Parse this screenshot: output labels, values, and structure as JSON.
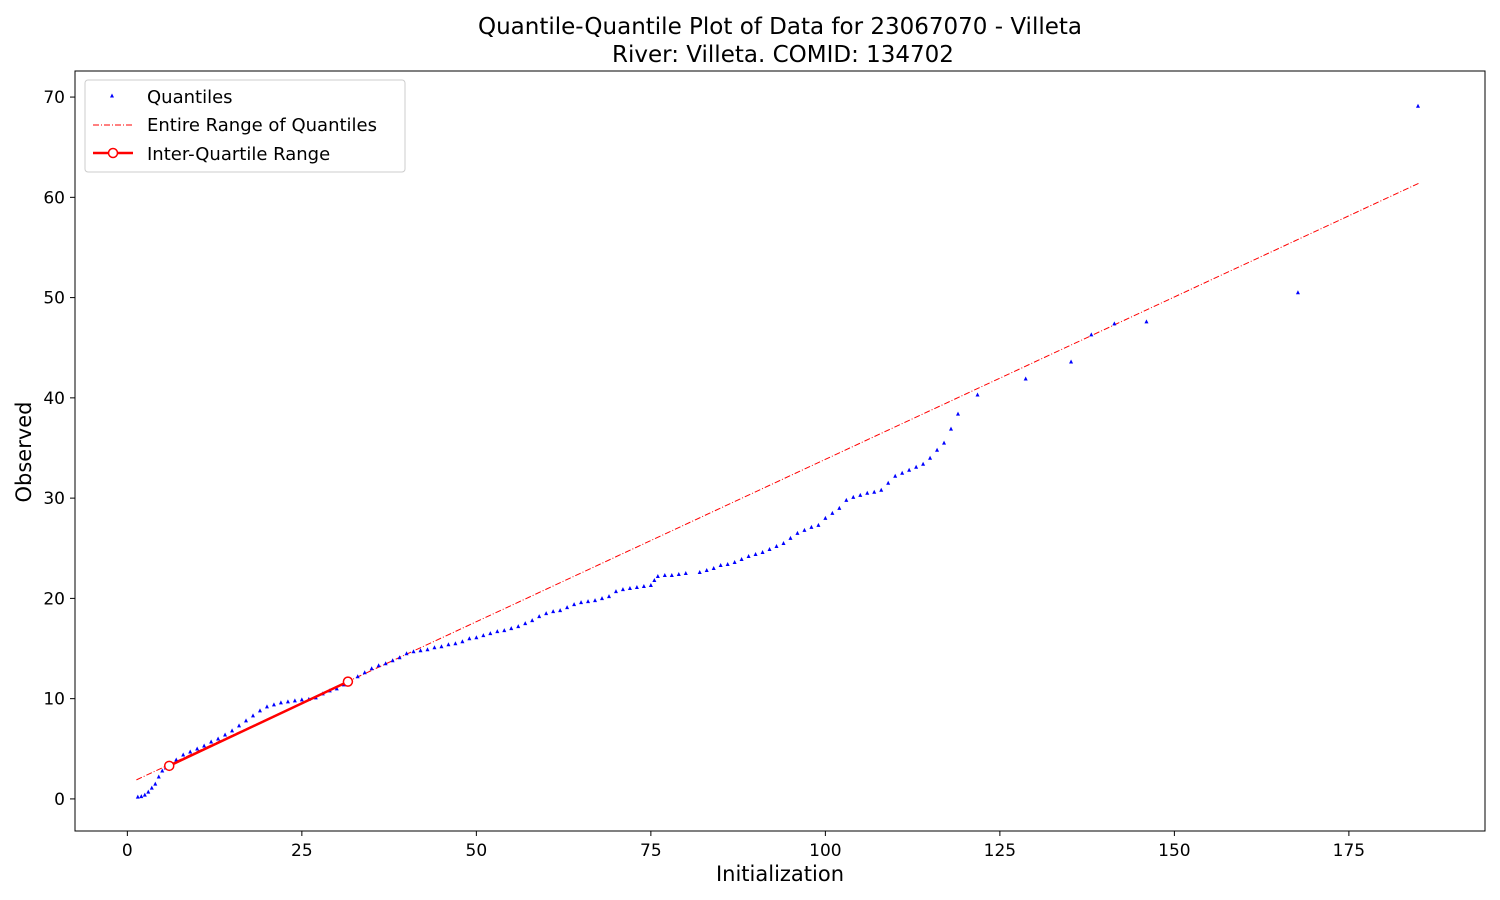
{
  "chart_data": {
    "type": "scatter",
    "title": "Quantile-Quantile Plot of Data for 23067070 - Villeta",
    "subtitle": "River: Villeta. COMID: 134702",
    "xlabel": "Initialization",
    "ylabel": "Observed",
    "xlim": [
      -7.5,
      194.5
    ],
    "ylim": [
      -3.2,
      72.6
    ],
    "xticks": [
      0,
      25,
      50,
      75,
      100,
      125,
      150,
      175
    ],
    "yticks": [
      0,
      10,
      20,
      30,
      40,
      50,
      60,
      70
    ],
    "grid": false,
    "legend_position": "upper-left",
    "colors": {
      "quantiles": "#0000ff",
      "entire_range": "#ff0000",
      "iqr": "#ff0000"
    },
    "series": [
      {
        "name": "Quantiles",
        "style": "triangle-markers",
        "points": [
          [
            1.5,
            0.2
          ],
          [
            2.0,
            0.25
          ],
          [
            2.5,
            0.4
          ],
          [
            3.0,
            0.7
          ],
          [
            3.5,
            1.1
          ],
          [
            4.0,
            1.5
          ],
          [
            4.5,
            2.2
          ],
          [
            5.0,
            2.8
          ],
          [
            5.5,
            3.1
          ],
          [
            6.0,
            3.4
          ],
          [
            7.0,
            3.9
          ],
          [
            8.0,
            4.4
          ],
          [
            9.0,
            4.7
          ],
          [
            10.0,
            5.0
          ],
          [
            11.0,
            5.3
          ],
          [
            12.0,
            5.7
          ],
          [
            13.0,
            6.0
          ],
          [
            14.0,
            6.4
          ],
          [
            15.0,
            6.8
          ],
          [
            16.0,
            7.3
          ],
          [
            17.0,
            7.8
          ],
          [
            18.0,
            8.3
          ],
          [
            19.0,
            8.8
          ],
          [
            20.0,
            9.2
          ],
          [
            21.0,
            9.4
          ],
          [
            22.0,
            9.6
          ],
          [
            23.0,
            9.7
          ],
          [
            24.0,
            9.8
          ],
          [
            25.0,
            9.9
          ],
          [
            26.0,
            9.95
          ],
          [
            27.0,
            10.1
          ],
          [
            28.0,
            10.5
          ],
          [
            29.0,
            10.8
          ],
          [
            30.0,
            11.0
          ],
          [
            31.0,
            11.4
          ],
          [
            32.0,
            11.8
          ],
          [
            33.0,
            12.2
          ],
          [
            34.0,
            12.6
          ],
          [
            35.0,
            13.0
          ],
          [
            36.0,
            13.3
          ],
          [
            37.0,
            13.5
          ],
          [
            38.0,
            13.8
          ],
          [
            39.0,
            14.1
          ],
          [
            40.0,
            14.5
          ],
          [
            41.0,
            14.7
          ],
          [
            42.0,
            14.8
          ],
          [
            43.0,
            14.9
          ],
          [
            44.0,
            15.1
          ],
          [
            45.0,
            15.2
          ],
          [
            46.0,
            15.4
          ],
          [
            47.0,
            15.5
          ],
          [
            48.0,
            15.7
          ],
          [
            49.0,
            16.0
          ],
          [
            50.0,
            16.1
          ],
          [
            51.0,
            16.3
          ],
          [
            52.0,
            16.5
          ],
          [
            53.0,
            16.7
          ],
          [
            54.0,
            16.8
          ],
          [
            55.0,
            17.0
          ],
          [
            56.0,
            17.2
          ],
          [
            57.0,
            17.5
          ],
          [
            58.0,
            17.8
          ],
          [
            59.0,
            18.2
          ],
          [
            60.0,
            18.5
          ],
          [
            61.0,
            18.7
          ],
          [
            62.0,
            18.8
          ],
          [
            63.0,
            19.1
          ],
          [
            64.0,
            19.4
          ],
          [
            65.0,
            19.6
          ],
          [
            66.0,
            19.7
          ],
          [
            67.0,
            19.8
          ],
          [
            68.0,
            20.0
          ],
          [
            69.0,
            20.2
          ],
          [
            70.0,
            20.7
          ],
          [
            71.0,
            20.9
          ],
          [
            72.0,
            21.0
          ],
          [
            73.0,
            21.1
          ],
          [
            74.0,
            21.2
          ],
          [
            75.0,
            21.3
          ],
          [
            75.5,
            21.8
          ],
          [
            76.0,
            22.2
          ],
          [
            77.0,
            22.3
          ],
          [
            78.0,
            22.3
          ],
          [
            79.0,
            22.4
          ],
          [
            80.0,
            22.5
          ],
          [
            82.0,
            22.6
          ],
          [
            83.0,
            22.8
          ],
          [
            84.0,
            23.0
          ],
          [
            85.0,
            23.3
          ],
          [
            86.0,
            23.4
          ],
          [
            87.0,
            23.6
          ],
          [
            88.0,
            23.9
          ],
          [
            89.0,
            24.2
          ],
          [
            90.0,
            24.4
          ],
          [
            91.0,
            24.6
          ],
          [
            92.0,
            24.9
          ],
          [
            93.0,
            25.2
          ],
          [
            94.0,
            25.5
          ],
          [
            95.0,
            26.0
          ],
          [
            96.0,
            26.5
          ],
          [
            97.0,
            26.8
          ],
          [
            98.0,
            27.1
          ],
          [
            99.0,
            27.3
          ],
          [
            100.0,
            28.0
          ],
          [
            101.0,
            28.5
          ],
          [
            102.0,
            29.0
          ],
          [
            103.0,
            29.8
          ],
          [
            104.0,
            30.1
          ],
          [
            105.0,
            30.3
          ],
          [
            106.0,
            30.5
          ],
          [
            107.0,
            30.6
          ],
          [
            108.0,
            30.8
          ],
          [
            109.0,
            31.5
          ],
          [
            110.0,
            32.2
          ],
          [
            111.0,
            32.5
          ],
          [
            112.0,
            32.8
          ],
          [
            113.0,
            33.1
          ],
          [
            114.0,
            33.4
          ],
          [
            115.0,
            34.0
          ],
          [
            116.0,
            34.8
          ],
          [
            117.0,
            35.5
          ],
          [
            118.0,
            36.9
          ],
          [
            119.0,
            38.4
          ],
          [
            121.8,
            40.3
          ],
          [
            128.7,
            41.9
          ],
          [
            135.2,
            43.6
          ],
          [
            138.1,
            46.3
          ],
          [
            141.4,
            47.4
          ],
          [
            146.0,
            47.6
          ],
          [
            167.7,
            50.5
          ],
          [
            184.9,
            69.1
          ]
        ]
      },
      {
        "name": "Entire Range of Quantiles",
        "style": "dash-dot",
        "points": [
          [
            1.3,
            1.9
          ],
          [
            185.0,
            61.4
          ]
        ]
      },
      {
        "name": "Inter-Quartile Range",
        "style": "solid-with-circles",
        "points": [
          [
            6.0,
            3.3
          ],
          [
            31.6,
            11.7
          ]
        ]
      }
    ]
  }
}
